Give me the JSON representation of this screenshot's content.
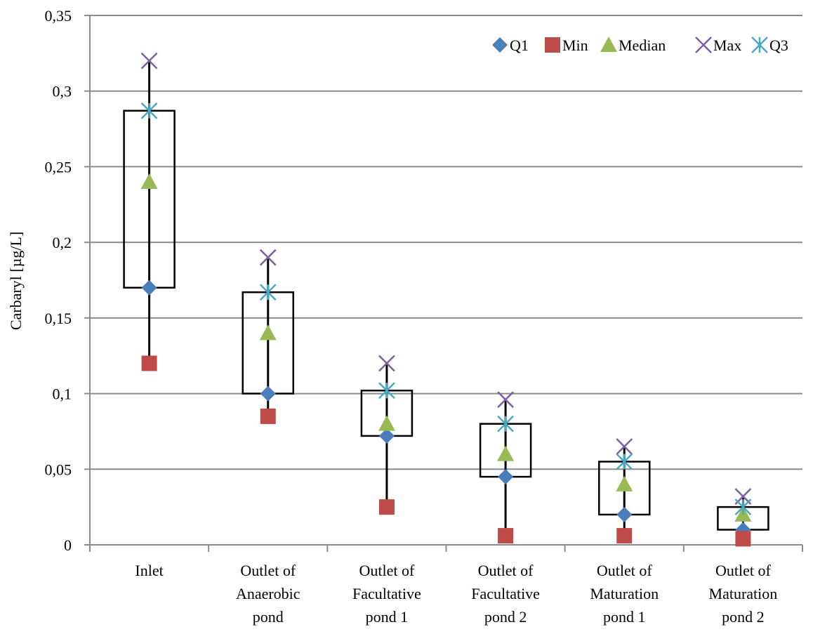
{
  "chart_data": {
    "type": "boxplot",
    "title": "",
    "xlabel": "",
    "ylabel": "Carbaryl [µg/L]",
    "ylim": [
      0,
      0.35
    ],
    "yticks": [
      0,
      0.05,
      0.1,
      0.15,
      0.2,
      0.25,
      0.3,
      0.35
    ],
    "ytick_labels": [
      "0",
      "0,05",
      "0,1",
      "0,15",
      "0,2",
      "0,25",
      "0,3",
      "0,35"
    ],
    "grid": "horizontal",
    "legend_position": "top-right",
    "categories": [
      [
        "Inlet"
      ],
      [
        "Outlet of",
        "Anaerobic",
        "pond"
      ],
      [
        "Outlet of",
        "Facultative",
        "pond 1"
      ],
      [
        "Outlet of",
        "Facultative",
        "pond 2"
      ],
      [
        "Outlet of",
        "Maturation",
        "pond 1"
      ],
      [
        "Outlet of",
        "Maturation",
        "pond 2"
      ]
    ],
    "series": [
      {
        "name": "Q1",
        "marker": "diamond",
        "color": "#4a7ebb",
        "values": [
          0.17,
          0.1,
          0.072,
          0.045,
          0.02,
          0.01
        ]
      },
      {
        "name": "Min",
        "marker": "square",
        "color": "#be4b48",
        "values": [
          0.12,
          0.085,
          0.025,
          0.006,
          0.006,
          0.004
        ]
      },
      {
        "name": "Median",
        "marker": "triangle",
        "color": "#98b954",
        "values": [
          0.24,
          0.14,
          0.08,
          0.06,
          0.04,
          0.02
        ]
      },
      {
        "name": "Max",
        "marker": "x",
        "color": "#7d60a0",
        "values": [
          0.32,
          0.19,
          0.12,
          0.096,
          0.065,
          0.032
        ]
      },
      {
        "name": "Q3",
        "marker": "star",
        "color": "#46aac5",
        "values": [
          0.287,
          0.167,
          0.102,
          0.08,
          0.055,
          0.025
        ]
      }
    ]
  }
}
